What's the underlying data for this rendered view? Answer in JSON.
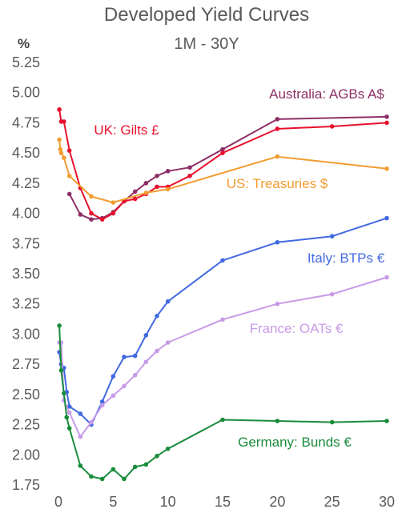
{
  "chart_data": {
    "type": "line",
    "title": "Developed Yield Curves",
    "subtitle": "1M - 30Y",
    "ylabel": "%",
    "xlabel": "",
    "xlim": [
      0,
      30
    ],
    "ylim": [
      1.75,
      5.25
    ],
    "x_ticks": [
      0,
      5,
      10,
      15,
      20,
      25,
      30
    ],
    "y_ticks": [
      1.75,
      2.0,
      2.25,
      2.5,
      2.75,
      3.0,
      3.25,
      3.5,
      3.75,
      4.0,
      4.25,
      4.5,
      4.75,
      5.0,
      5.25
    ],
    "grid": false,
    "legend": "inline labels",
    "series": [
      {
        "name": "Australia: AGBs A$",
        "color": "#8e2f66",
        "x": [
          1,
          2,
          3,
          4,
          5,
          6,
          7,
          8,
          9,
          10,
          12,
          15,
          20,
          30
        ],
        "y": [
          4.16,
          3.99,
          3.95,
          3.96,
          4.01,
          4.1,
          4.18,
          4.25,
          4.31,
          4.35,
          4.38,
          4.53,
          4.78,
          4.8
        ]
      },
      {
        "name": "UK: Gilts £",
        "color": "#e8112d",
        "x": [
          0.08,
          0.25,
          0.5,
          1,
          2,
          3,
          4,
          5,
          6,
          7,
          8,
          9,
          10,
          12,
          15,
          20,
          25,
          30
        ],
        "y": [
          4.86,
          4.76,
          4.76,
          4.52,
          4.21,
          4.0,
          3.95,
          4.0,
          4.1,
          4.12,
          4.16,
          4.22,
          4.22,
          4.31,
          4.5,
          4.7,
          4.72,
          4.75
        ]
      },
      {
        "name": "US: Treasuries $",
        "color": "#f39c31",
        "x": [
          0.08,
          0.17,
          0.25,
          0.5,
          1,
          3,
          5,
          8,
          10,
          20,
          30
        ],
        "y": [
          4.61,
          4.53,
          4.5,
          4.46,
          4.31,
          4.14,
          4.09,
          4.17,
          4.2,
          4.47,
          4.37
        ]
      },
      {
        "name": "Italy: BTPs €",
        "color": "#4169e1",
        "x": [
          0.08,
          0.25,
          0.5,
          0.75,
          1,
          2,
          3,
          4,
          5,
          6,
          7,
          8,
          9,
          10,
          15,
          20,
          25,
          30
        ],
        "y": [
          2.85,
          2.75,
          2.72,
          2.52,
          2.4,
          2.34,
          2.25,
          2.44,
          2.65,
          2.81,
          2.82,
          2.99,
          3.15,
          3.27,
          3.61,
          3.76,
          3.81,
          3.96
        ]
      },
      {
        "name": "France: OATs €",
        "color": "#c89be8",
        "x": [
          0.08,
          0.25,
          0.5,
          1,
          2,
          3,
          4,
          5,
          6,
          7,
          8,
          9,
          10,
          15,
          20,
          25,
          30
        ],
        "y": [
          2.93,
          2.93,
          2.45,
          2.35,
          2.15,
          2.27,
          2.41,
          2.49,
          2.57,
          2.66,
          2.77,
          2.86,
          2.93,
          3.12,
          3.25,
          3.33,
          3.47
        ]
      },
      {
        "name": "Germany: Bunds €",
        "color": "#198c3b",
        "x": [
          0.08,
          0.25,
          0.5,
          0.75,
          1,
          2,
          3,
          4,
          5,
          6,
          7,
          8,
          9,
          10,
          15,
          20,
          25,
          30
        ],
        "y": [
          3.07,
          2.7,
          2.51,
          2.31,
          2.22,
          1.91,
          1.82,
          1.8,
          1.88,
          1.8,
          1.9,
          1.92,
          1.99,
          2.05,
          2.29,
          2.28,
          2.27,
          2.28
        ]
      }
    ]
  }
}
